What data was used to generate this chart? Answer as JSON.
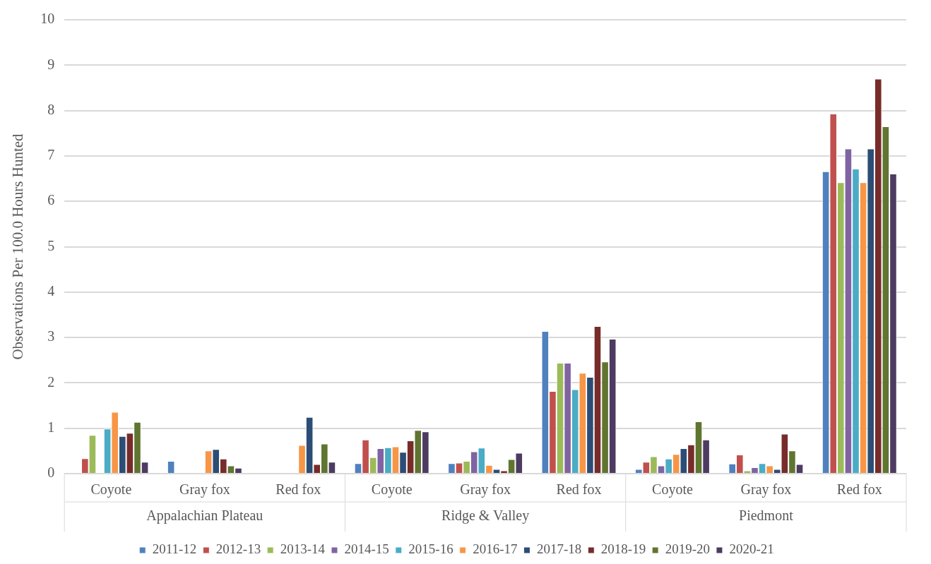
{
  "chart_data": {
    "type": "bar",
    "ylabel": "Observations Per 100.0 Hours Hunted",
    "categories": [
      "Coyote",
      "Gray fox",
      "Red fox",
      "Coyote",
      "Gray fox",
      "Red fox",
      "Coyote",
      "Gray fox",
      "Red fox"
    ],
    "annotations": [
      "Appalachian Plateau",
      "Ridge & Valley",
      "Piedmont"
    ],
    "series": [
      {
        "name": "2011-12",
        "color": "#4f81bd",
        "values": [
          0,
          0.28,
          0,
          0.23,
          0.23,
          3.14,
          0.1,
          0.22,
          6.66
        ]
      },
      {
        "name": "2012-13",
        "color": "#c0504d",
        "values": [
          0.34,
          0,
          0,
          0.75,
          0.24,
          1.82,
          0.26,
          0.42,
          7.93
        ]
      },
      {
        "name": "2013-14",
        "color": "#9bbb59",
        "values": [
          0.85,
          0,
          0,
          0.36,
          0.28,
          2.44,
          0.38,
          0.07,
          6.42
        ]
      },
      {
        "name": "2014-15",
        "color": "#8064a2",
        "values": [
          0,
          0,
          0,
          0.56,
          0.49,
          2.44,
          0.18,
          0.14,
          7.16
        ]
      },
      {
        "name": "2015-16",
        "color": "#4bacc6",
        "values": [
          0.99,
          0,
          0,
          0.58,
          0.57,
          1.86,
          0.33,
          0.23,
          6.72
        ]
      },
      {
        "name": "2016-17",
        "color": "#f79646",
        "values": [
          1.36,
          0.51,
          0.63,
          0.6,
          0.19,
          2.22,
          0.43,
          0.18,
          6.42
        ]
      },
      {
        "name": "2017-18",
        "color": "#2c4d75",
        "values": [
          0.83,
          0.54,
          1.25,
          0.48,
          0.1,
          2.13,
          0.56,
          0.1,
          7.16
        ]
      },
      {
        "name": "2018-19",
        "color": "#772c2a",
        "values": [
          0.9,
          0.33,
          0.21,
          0.73,
          0.07,
          3.25,
          0.64,
          0.88,
          8.7
        ]
      },
      {
        "name": "2019-20",
        "color": "#5f7530",
        "values": [
          1.14,
          0.18,
          0.66,
          0.96,
          0.32,
          2.47,
          1.15,
          0.51,
          7.65
        ]
      },
      {
        "name": "2020-21",
        "color": "#4d3b62",
        "values": [
          0.26,
          0.13,
          0.26,
          0.93,
          0.46,
          2.97,
          0.75,
          0.21,
          6.61
        ]
      }
    ],
    "ylim": [
      0,
      10
    ],
    "yticks": [
      0,
      1,
      2,
      3,
      4,
      5,
      6,
      7,
      8,
      9,
      10
    ],
    "grid": "y",
    "legend": "bottom"
  }
}
